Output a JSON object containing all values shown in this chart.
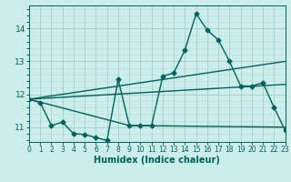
{
  "xlabel": "Humidex (Indice chaleur)",
  "bg_color": "#cceee8",
  "grid_major_color": "#aad4cc",
  "grid_minor_color": "#bbddd8",
  "line_color": "#006060",
  "xlim": [
    0,
    23
  ],
  "ylim": [
    10.55,
    14.7
  ],
  "yticks": [
    11,
    12,
    13,
    14
  ],
  "xticks": [
    0,
    1,
    2,
    3,
    4,
    5,
    6,
    7,
    8,
    9,
    10,
    11,
    12,
    13,
    14,
    15,
    16,
    17,
    18,
    19,
    20,
    21,
    22,
    23
  ],
  "line1_x": [
    0,
    1,
    2,
    3,
    4,
    5,
    6,
    7,
    8,
    9,
    10,
    11,
    12,
    13,
    14,
    15,
    16,
    17,
    18,
    19,
    20,
    21,
    22,
    23
  ],
  "line1_y": [
    11.85,
    11.75,
    11.05,
    11.15,
    10.8,
    10.78,
    10.68,
    10.6,
    12.45,
    11.05,
    11.05,
    11.05,
    12.55,
    12.65,
    13.35,
    14.45,
    13.95,
    13.65,
    13.0,
    12.25,
    12.25,
    12.35,
    11.6,
    10.9
  ],
  "line2_x": [
    0,
    23
  ],
  "line2_y": [
    11.85,
    13.0
  ],
  "line3_x": [
    0,
    23
  ],
  "line3_y": [
    11.85,
    12.3
  ],
  "line4_x": [
    0,
    9,
    23
  ],
  "line4_y": [
    11.85,
    11.05,
    11.0
  ],
  "marker": "D",
  "markersize": 2.5,
  "linewidth": 1.0,
  "tick_fontsize": 6,
  "xlabel_fontsize": 7
}
